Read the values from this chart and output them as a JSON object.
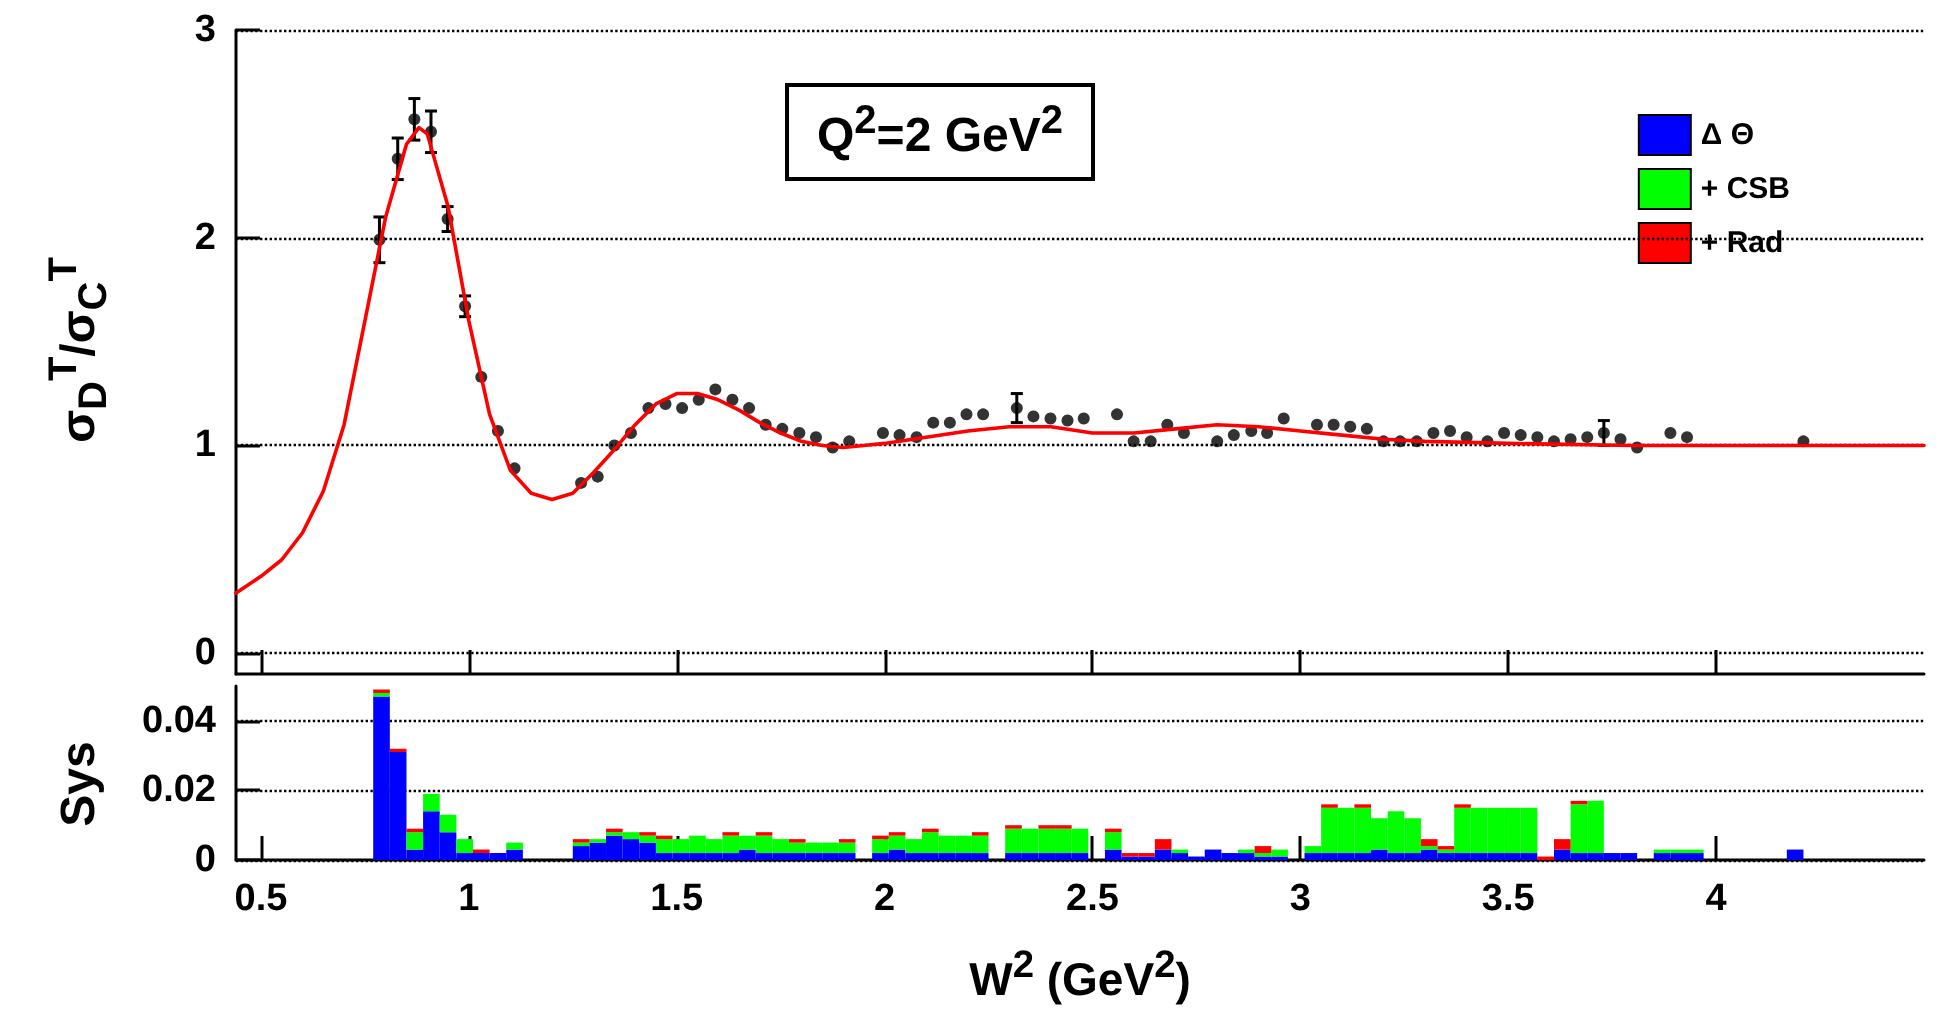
{
  "chart_data": [
    {
      "type": "scatter",
      "ylabel": "σ$_{D}$$^{T}$/σ$_{C}$$^{T}$",
      "annotations": [
        "Q$^{2}$=2 GeV$^{2}$"
      ],
      "xlim": [
        0.44,
        4.5
      ],
      "xticks": [
        0.5,
        1,
        1.5,
        2,
        2.5,
        3,
        3.5,
        4
      ],
      "ylim": [
        -0.1,
        3
      ],
      "yticks": [
        0,
        1,
        2,
        3
      ],
      "tick_labels": "y",
      "grid": "y",
      "marker": "circle",
      "series": [
        {
          "type": "scatter",
          "color": "#000000",
          "x": [
            0.785,
            0.829,
            0.869,
            0.909,
            0.949,
            0.991,
            1.03,
            1.07,
            1.11,
            1.27,
            1.31,
            1.35,
            1.39,
            1.432,
            1.473,
            1.513,
            1.553,
            1.593,
            1.634,
            1.674,
            1.714,
            1.754,
            1.795,
            1.835,
            1.875,
            1.915,
            1.996,
            2.036,
            2.077,
            2.117,
            2.157,
            2.197,
            2.237,
            2.318,
            2.358,
            2.399,
            2.44,
            2.479,
            2.559,
            2.599,
            2.64,
            2.68,
            2.72,
            2.8,
            2.84,
            2.882,
            2.92,
            2.96,
            3.04,
            3.08,
            3.12,
            3.16,
            3.2,
            3.24,
            3.28,
            3.32,
            3.36,
            3.4,
            3.45,
            3.49,
            3.53,
            3.57,
            3.61,
            3.65,
            3.69,
            3.73,
            3.77,
            3.81,
            3.89,
            3.93,
            4.21
          ],
          "values": [
            1.99,
            2.38,
            2.57,
            2.51,
            2.09,
            1.67,
            1.33,
            1.07,
            0.89,
            0.82,
            0.85,
            1.0,
            1.06,
            1.18,
            1.2,
            1.18,
            1.22,
            1.27,
            1.22,
            1.18,
            1.1,
            1.08,
            1.06,
            1.04,
            0.99,
            1.02,
            1.06,
            1.05,
            1.04,
            1.11,
            1.11,
            1.15,
            1.15,
            1.18,
            1.14,
            1.13,
            1.12,
            1.13,
            1.15,
            1.02,
            1.02,
            1.1,
            1.06,
            1.02,
            1.05,
            1.07,
            1.06,
            1.13,
            1.1,
            1.1,
            1.09,
            1.08,
            1.02,
            1.02,
            1.02,
            1.06,
            1.07,
            1.04,
            1.02,
            1.06,
            1.05,
            1.04,
            1.02,
            1.03,
            1.04,
            1.06,
            1.03,
            0.99,
            1.06,
            1.04,
            1.02
          ],
          "errors": [
            0.11,
            0.1,
            0.1,
            0.1,
            0.06,
            0.05,
            null,
            null,
            null,
            null,
            null,
            null,
            null,
            null,
            null,
            null,
            null,
            null,
            null,
            null,
            null,
            null,
            null,
            null,
            null,
            null,
            null,
            null,
            null,
            null,
            null,
            null,
            null,
            0.07,
            null,
            null,
            null,
            null,
            null,
            null,
            null,
            null,
            null,
            null,
            null,
            null,
            null,
            null,
            null,
            null,
            null,
            null,
            null,
            null,
            null,
            null,
            null,
            null,
            null,
            null,
            null,
            null,
            null,
            null,
            null,
            0.06,
            null,
            null,
            null,
            null,
            null
          ]
        },
        {
          "type": "line",
          "color": "#ff0000",
          "marker": "none",
          "line_style": "solid",
          "x": [
            0.44,
            0.5,
            0.55,
            0.6,
            0.65,
            0.7,
            0.75,
            0.8,
            0.85,
            0.88,
            0.9,
            0.95,
            1.0,
            1.05,
            1.1,
            1.15,
            1.2,
            1.25,
            1.3,
            1.35,
            1.4,
            1.45,
            1.5,
            1.55,
            1.6,
            1.65,
            1.7,
            1.75,
            1.8,
            1.85,
            1.9,
            1.95,
            2.0,
            2.1,
            2.2,
            2.3,
            2.4,
            2.5,
            2.6,
            2.7,
            2.8,
            2.9,
            3.0,
            3.1,
            3.2,
            3.3,
            3.5,
            3.8,
            4.5
          ],
          "values": [
            0.29,
            0.37,
            0.45,
            0.58,
            0.78,
            1.1,
            1.6,
            2.1,
            2.45,
            2.53,
            2.5,
            2.15,
            1.6,
            1.15,
            0.88,
            0.77,
            0.74,
            0.77,
            0.87,
            0.98,
            1.1,
            1.2,
            1.25,
            1.25,
            1.22,
            1.17,
            1.11,
            1.06,
            1.02,
            1.0,
            0.99,
            1.0,
            1.01,
            1.04,
            1.07,
            1.09,
            1.09,
            1.06,
            1.06,
            1.08,
            1.1,
            1.09,
            1.07,
            1.05,
            1.03,
            1.02,
            1.01,
            1.0,
            1.0
          ]
        }
      ]
    },
    {
      "type": "bar",
      "xlabel": "W$^{2}$ (GeV$^{2}$)",
      "ylabel": "Sys",
      "xlim": [
        0.44,
        4.5
      ],
      "xticks": [
        0.5,
        1,
        1.5,
        2,
        2.5,
        3,
        3.5,
        4
      ],
      "ylim": [
        0,
        0.05
      ],
      "yticks": [
        0,
        0.02,
        0.04
      ],
      "grid": "y",
      "stacked": true,
      "legend": "top right",
      "x": [
        0.79,
        0.83,
        0.87,
        0.91,
        0.95,
        0.99,
        1.03,
        1.07,
        1.11,
        1.15,
        1.19,
        1.23,
        1.27,
        1.31,
        1.35,
        1.39,
        1.43,
        1.47,
        1.51,
        1.55,
        1.59,
        1.63,
        1.67,
        1.71,
        1.75,
        1.79,
        1.83,
        1.87,
        1.91,
        1.95,
        1.99,
        2.03,
        2.07,
        2.11,
        2.15,
        2.19,
        2.23,
        2.27,
        2.31,
        2.35,
        2.39,
        2.43,
        2.47,
        2.51,
        2.55,
        2.59,
        2.63,
        2.67,
        2.71,
        2.75,
        2.79,
        2.83,
        2.87,
        2.91,
        2.95,
        2.99,
        3.03,
        3.07,
        3.11,
        3.15,
        3.19,
        3.23,
        3.27,
        3.31,
        3.35,
        3.39,
        3.43,
        3.47,
        3.51,
        3.55,
        3.59,
        3.63,
        3.67,
        3.71,
        3.75,
        3.79,
        3.83,
        3.87,
        3.91,
        3.95,
        3.99,
        4.03,
        4.07,
        4.11,
        4.15,
        4.19
      ],
      "series": [
        {
          "name": "Δ Θ",
          "color": "#0000ff",
          "values": [
            0.047,
            0.031,
            0.003,
            0.014,
            0.008,
            0.002,
            0.002,
            0.002,
            0.003,
            0,
            0,
            0,
            0.004,
            0.005,
            0.007,
            0.006,
            0.005,
            0.002,
            0.002,
            0.002,
            0.002,
            0.002,
            0.003,
            0.002,
            0.002,
            0.002,
            0.002,
            0.002,
            0.002,
            0,
            0.002,
            0.003,
            0.002,
            0.002,
            0.002,
            0.002,
            0.002,
            0,
            0.002,
            0.002,
            0.002,
            0.002,
            0.002,
            0,
            0.003,
            0.001,
            0.001,
            0.003,
            0.002,
            0.001,
            0.003,
            0.002,
            0.002,
            0.001,
            0.001,
            0,
            0.002,
            0.002,
            0.002,
            0.002,
            0.003,
            0.002,
            0.002,
            0.003,
            0.002,
            0.002,
            0.002,
            0.002,
            0.002,
            0.002,
            0,
            0.003,
            0.002,
            0.002,
            0.002,
            0.002,
            0,
            0.002,
            0.002,
            0.002,
            0,
            0,
            0,
            0,
            0,
            0.003
          ]
        },
        {
          "name": "+ CSB",
          "color": "#00ff00",
          "values": [
            0.001,
            0,
            0.005,
            0.005,
            0.005,
            0.004,
            0,
            0,
            0.002,
            0,
            0,
            0,
            0.001,
            0.001,
            0.001,
            0.002,
            0.002,
            0.004,
            0.004,
            0.005,
            0.004,
            0.005,
            0.004,
            0.005,
            0.004,
            0.003,
            0.003,
            0.003,
            0.003,
            0,
            0.004,
            0.004,
            0.004,
            0.006,
            0.005,
            0.005,
            0.005,
            0,
            0.007,
            0.007,
            0.007,
            0.007,
            0.007,
            0,
            0.005,
            0,
            0,
            0,
            0.001,
            0,
            0,
            0,
            0.001,
            0.001,
            0.002,
            0,
            0.002,
            0.013,
            0.013,
            0.013,
            0.009,
            0.012,
            0.01,
            0.001,
            0.001,
            0.013,
            0.013,
            0.013,
            0.013,
            0.013,
            0,
            0,
            0.014,
            0.015,
            0,
            0,
            0,
            0.001,
            0.001,
            0.001,
            0,
            0,
            0,
            0,
            0,
            0
          ]
        },
        {
          "name": "+ Rad",
          "color": "#ff0000",
          "values": [
            0.001,
            0.001,
            0.001,
            0,
            0,
            0,
            0.001,
            0,
            0,
            0,
            0,
            0,
            0.001,
            0,
            0.001,
            0,
            0.001,
            0.001,
            0,
            0,
            0,
            0.001,
            0,
            0.001,
            0,
            0.001,
            0,
            0,
            0.001,
            0,
            0.001,
            0.001,
            0,
            0.001,
            0,
            0,
            0.001,
            0,
            0.001,
            0,
            0.001,
            0.001,
            0,
            0,
            0.001,
            0.001,
            0.001,
            0.003,
            0,
            0,
            0,
            0,
            0,
            0.002,
            0,
            0,
            0,
            0.001,
            0,
            0.001,
            0,
            0,
            0,
            0.002,
            0.001,
            0.001,
            0,
            0,
            0,
            0,
            0.001,
            0.003,
            0.001,
            0,
            0,
            0,
            0,
            0,
            0,
            0,
            0,
            0,
            0,
            0,
            0,
            0
          ]
        }
      ]
    }
  ]
}
